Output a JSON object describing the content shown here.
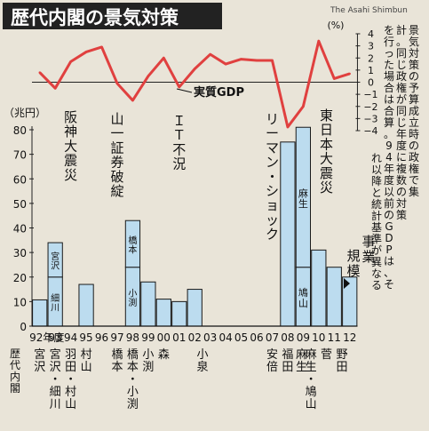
{
  "header": {
    "title": "歴代内閣の景気対策",
    "credit": "The Asahi Shimbun"
  },
  "note": "景気対策の予算成立時の政権で集計。同じ政権が同じ年度に複数の対策を行った場合は合算。94年度以前のGDPは、それ以降と統計基準が異なる",
  "gdp_axis": {
    "unit": "(%)",
    "ticks": [
      "4",
      "3",
      "2",
      "1",
      "0",
      "−1",
      "−2",
      "−3",
      "−4"
    ]
  },
  "gdp_label": "実質GDP",
  "bar_axis": {
    "unit": "（兆円）",
    "ticks": [
      "80",
      "70",
      "60",
      "50",
      "40",
      "30",
      "20",
      "10",
      "0"
    ]
  },
  "bar_label": "事業規模",
  "x_axis": {
    "first_suffix": "年度",
    "years": [
      "92",
      "93",
      "94",
      "95",
      "96",
      "97",
      "98",
      "99",
      "00",
      "01",
      "02",
      "03",
      "04",
      "05",
      "06",
      "07",
      "08",
      "09",
      "10",
      "11",
      "12"
    ]
  },
  "cabinet_header": "歴代内閣",
  "cabinets": [
    {
      "name": "宮沢",
      "x_index": 0
    },
    {
      "name": "宮沢・細川",
      "x_index": 1
    },
    {
      "name": "羽田・村山",
      "x_index": 2
    },
    {
      "name": "村山",
      "x_index": 3
    },
    {
      "name": "橋本",
      "x_index": 5
    },
    {
      "name": "橋本・小渕",
      "x_index": 6
    },
    {
      "name": "小渕",
      "x_index": 7
    },
    {
      "name": "森",
      "x_index": 8
    },
    {
      "name": "小泉",
      "x_index": 10.5
    },
    {
      "name": "安倍",
      "x_index": 15
    },
    {
      "name": "福田",
      "x_index": 16
    },
    {
      "name": "麻生",
      "x_index": 16.9
    },
    {
      "name": "麻生・鳩山",
      "x_index": 17.5
    },
    {
      "name": "菅",
      "x_index": 18.5
    },
    {
      "name": "野田",
      "x_index": 19.5
    }
  ],
  "events": [
    {
      "label": "阪神大震災",
      "x_index": 2
    },
    {
      "label": "山一証券破綻",
      "x_index": 5
    },
    {
      "label": "ＩＴ不況",
      "x_index": 9
    },
    {
      "label": "リーマン・ショック",
      "x_index": 15
    },
    {
      "label": "東日本大震災",
      "x_index": 18.5
    }
  ],
  "colors": {
    "background": "#e9e4d8",
    "bar_fill": "#bcdcef",
    "line": "#e0403f",
    "title_bg": "#222222",
    "title_text": "#ffffff"
  },
  "chart_data": {
    "type": "bar",
    "title": "歴代内閣の景気対策",
    "xlabel": "",
    "ylabel": "兆円",
    "ylim": [
      0,
      80
    ],
    "categories": [
      "92",
      "93",
      "94",
      "95",
      "96",
      "97",
      "98",
      "99",
      "00",
      "01",
      "02",
      "03",
      "04",
      "05",
      "06",
      "07",
      "08",
      "09",
      "10",
      "11",
      "12"
    ],
    "bars": [
      {
        "year": "92",
        "segments": [
          {
            "cabinet": "宮沢",
            "value": 10.7
          }
        ]
      },
      {
        "year": "93",
        "segments": [
          {
            "cabinet": "細川",
            "value": 20
          },
          {
            "cabinet": "宮沢",
            "value": 14
          }
        ]
      },
      {
        "year": "95",
        "segments": [
          {
            "cabinet": "村山",
            "value": 17
          }
        ]
      },
      {
        "year": "98",
        "segments": [
          {
            "cabinet": "小渕",
            "value": 24
          },
          {
            "cabinet": "橋本",
            "value": 19
          }
        ]
      },
      {
        "year": "99",
        "segments": [
          {
            "cabinet": "小渕",
            "value": 18
          }
        ]
      },
      {
        "year": "00",
        "segments": [
          {
            "cabinet": "森",
            "value": 11
          }
        ]
      },
      {
        "year": "01",
        "segments": [
          {
            "cabinet": "小泉",
            "value": 10
          }
        ]
      },
      {
        "year": "02",
        "segments": [
          {
            "cabinet": "小泉",
            "value": 15
          }
        ]
      },
      {
        "year": "08",
        "segments": [
          {
            "cabinet": "福田・麻生",
            "value": 75
          }
        ]
      },
      {
        "year": "09",
        "segments": [
          {
            "cabinet": "鳩山",
            "value": 24
          },
          {
            "cabinet": "麻生",
            "value": 57
          }
        ]
      },
      {
        "year": "10",
        "segments": [
          {
            "cabinet": "菅",
            "value": 31
          }
        ]
      },
      {
        "year": "11",
        "segments": [
          {
            "cabinet": "菅・野田",
            "value": 24
          }
        ]
      },
      {
        "year": "12",
        "segments": [
          {
            "cabinet": "野田",
            "value": 20
          }
        ]
      }
    ],
    "line": {
      "name": "実質GDP",
      "unit": "%",
      "ylim": [
        -4,
        4
      ],
      "values": [
        0.8,
        -0.5,
        1.7,
        2.5,
        2.9,
        -0.1,
        -1.5,
        0.5,
        2.0,
        -0.4,
        1.1,
        2.3,
        1.5,
        1.9,
        1.8,
        1.8,
        -3.7,
        -2.0,
        3.4,
        0.3,
        0.7
      ]
    }
  }
}
